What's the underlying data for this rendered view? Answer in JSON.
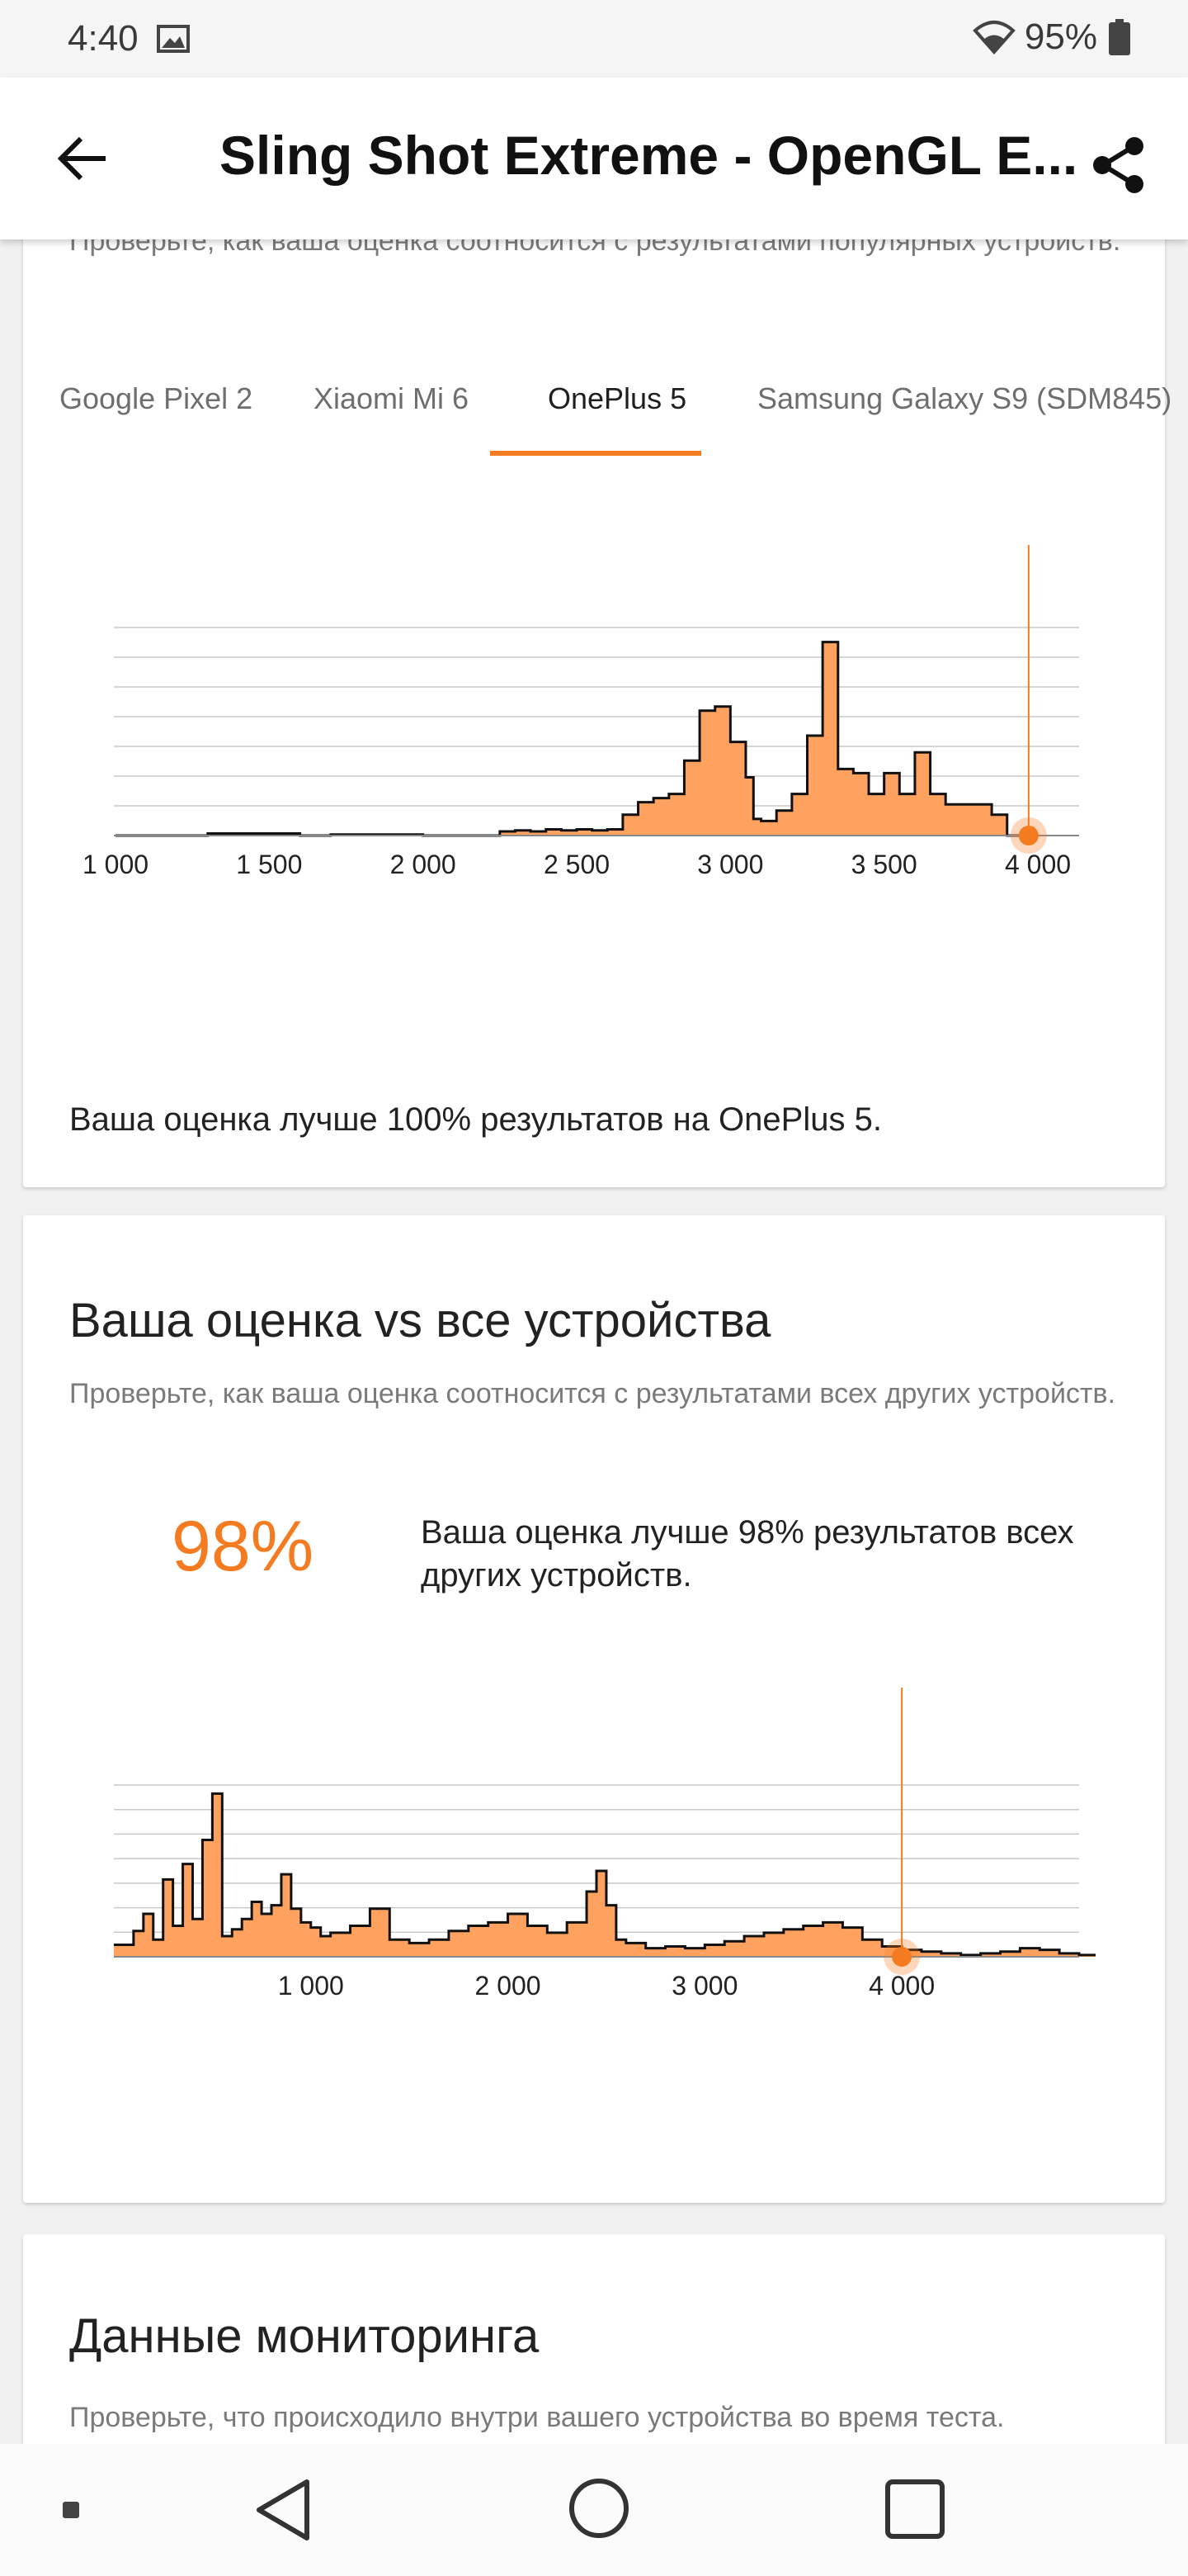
{
  "status_bar": {
    "time": "4:40",
    "battery": "95%"
  },
  "app_bar": {
    "title": "Sling Shot Extreme - OpenGL E..."
  },
  "card_popular": {
    "subtitle": "Проверьте, как ваша оценка соотносится с результатами популярных устройств.",
    "tabs": [
      {
        "label": "Google Pixel 2"
      },
      {
        "label": "Xiaomi Mi 6"
      },
      {
        "label": "OnePlus 5"
      },
      {
        "label": "Samsung Galaxy S9 (SDM845)"
      }
    ],
    "active_tab": "OnePlus 5",
    "result_text": "Ваша оценка лучше 100% результатов на OnePlus 5."
  },
  "card_all": {
    "title": "Ваша оценка vs все устройства",
    "subtitle": "Проверьте, как ваша оценка соотносится с результатами всех других устройств.",
    "percent": "98%",
    "percent_text": "Ваша оценка лучше 98% результатов всех других устройств."
  },
  "card_monitoring": {
    "title": "Данные мониторинга",
    "subtitle": "Проверьте, что происходило внутри вашего устройства во время теста."
  },
  "colors": {
    "accent": "#f47b20",
    "fill": "#ffa25f",
    "outline": "#111111"
  },
  "chart_data": [
    {
      "type": "area",
      "name": "OnePlus 5 distribution",
      "x_ticks": [
        "1 000",
        "1 500",
        "2 000",
        "2 500",
        "3 000",
        "3 500",
        "4 000"
      ],
      "xlim": [
        1000,
        4000
      ],
      "ylim": [
        0,
        100
      ],
      "grid": true,
      "marker_x": 3970,
      "x": [
        1000,
        1300,
        1600,
        1700,
        2000,
        2250,
        2300,
        2350,
        2400,
        2450,
        2500,
        2550,
        2600,
        2650,
        2700,
        2750,
        2800,
        2850,
        2900,
        2950,
        3000,
        3050,
        3075,
        3100,
        3150,
        3200,
        3250,
        3300,
        3350,
        3400,
        3450,
        3500,
        3550,
        3600,
        3650,
        3700,
        3750,
        3800,
        3850,
        3900
      ],
      "values": [
        0,
        1,
        0,
        0.5,
        0,
        2,
        2.5,
        2,
        3,
        2.5,
        3,
        2.5,
        3,
        10,
        16,
        18,
        20,
        36,
        60,
        62,
        45,
        28,
        8,
        7,
        12,
        20,
        48,
        93,
        32,
        30,
        20,
        30,
        20,
        40,
        20,
        15,
        15,
        15,
        10,
        0
      ]
    },
    {
      "type": "area",
      "name": "All devices distribution",
      "x_ticks": [
        "1 000",
        "2 000",
        "3 000",
        "4 000"
      ],
      "xlim": [
        0,
        4900
      ],
      "ylim": [
        0,
        100
      ],
      "grid": true,
      "marker_x": 4000,
      "x": [
        0,
        100,
        150,
        200,
        250,
        300,
        350,
        400,
        450,
        500,
        550,
        600,
        650,
        700,
        750,
        800,
        850,
        900,
        950,
        1000,
        1050,
        1100,
        1200,
        1300,
        1400,
        1500,
        1600,
        1700,
        1800,
        1900,
        2000,
        2100,
        2200,
        2300,
        2400,
        2450,
        2500,
        2550,
        2600,
        2700,
        2800,
        2900,
        3000,
        3100,
        3200,
        3300,
        3400,
        3500,
        3600,
        3700,
        3800,
        3900,
        4000,
        4100,
        4200,
        4300,
        4400,
        4500,
        4600,
        4700,
        4800,
        4900
      ],
      "values": [
        7,
        15,
        25,
        10,
        45,
        18,
        54,
        22,
        68,
        95,
        12,
        16,
        22,
        32,
        25,
        30,
        48,
        28,
        20,
        17,
        12,
        14,
        18,
        28,
        10,
        8,
        10,
        15,
        18,
        20,
        25,
        18,
        14,
        20,
        38,
        50,
        30,
        10,
        8,
        5,
        6,
        5,
        7,
        9,
        12,
        14,
        16,
        18,
        20,
        17,
        10,
        6,
        4,
        3,
        2,
        1,
        2,
        3,
        5,
        4,
        2,
        1
      ]
    }
  ]
}
